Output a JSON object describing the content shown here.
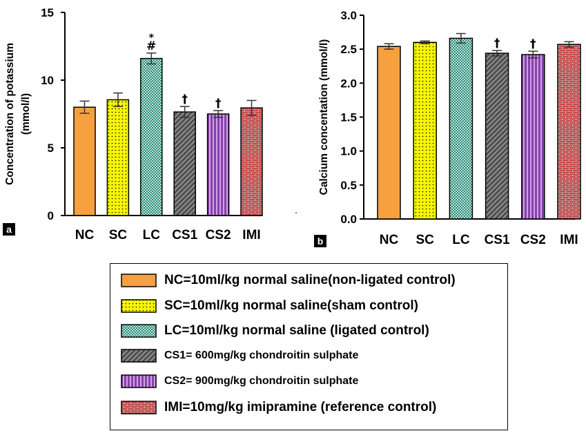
{
  "colors": {
    "NC": "#F7A040",
    "SC": "#F5F500",
    "LC": "#2E8B7A",
    "CS1": "#4A4A4A",
    "CS2": "#8B3FAE",
    "IMI": "#C94A4A"
  },
  "chart_data": [
    {
      "id": "a",
      "panel_label": "a",
      "type": "bar",
      "title": "",
      "xlabel": "",
      "ylabel": "Concentration of potassium\n(mmol/l)",
      "ylabel_lines": [
        "Concentration of potassium",
        "(mmol/l)"
      ],
      "ylim": [
        0,
        15
      ],
      "yticks": [
        0,
        5,
        10,
        15
      ],
      "tick_labels": [
        "0",
        "5",
        "10",
        "15"
      ],
      "categories": [
        "NC",
        "SC",
        "LC",
        "CS1",
        "CS2",
        "IMI"
      ],
      "values": [
        8.0,
        8.55,
        11.6,
        7.65,
        7.5,
        7.95
      ],
      "errors": [
        0.45,
        0.5,
        0.4,
        0.4,
        0.25,
        0.55
      ],
      "annotations": [
        "",
        "",
        "#\n*",
        "†",
        "†",
        ""
      ],
      "annotation_lines": [
        [],
        [],
        [
          "*",
          "#"
        ],
        [
          "†"
        ],
        [
          "†"
        ],
        []
      ]
    },
    {
      "id": "b",
      "panel_label": "b",
      "type": "bar",
      "title": "",
      "xlabel": "",
      "ylabel": "Calcium concentation (mmol/l)",
      "ylabel_lines": [
        "Calcium concentation (mmol/l)"
      ],
      "ylim": [
        0,
        3.0
      ],
      "yticks": [
        0,
        0.5,
        1.0,
        1.5,
        2.0,
        2.5,
        3.0
      ],
      "tick_labels": [
        "0.0",
        "0.5",
        "1.0",
        "1.5",
        "2.0",
        "2.5",
        "3.0"
      ],
      "categories": [
        "NC",
        "SC",
        "LC",
        "CS1",
        "CS2",
        "IMI"
      ],
      "values": [
        2.54,
        2.6,
        2.66,
        2.44,
        2.42,
        2.57
      ],
      "errors": [
        0.04,
        0.02,
        0.07,
        0.04,
        0.05,
        0.04
      ],
      "annotations": [
        "",
        "",
        "",
        "†",
        "†",
        ""
      ],
      "annotation_lines": [
        [],
        [],
        [],
        [
          "†"
        ],
        [
          "†"
        ],
        []
      ]
    }
  ],
  "legend": [
    {
      "key": "NC",
      "label": "NC=10ml/kg normal saline(non-ligated control)"
    },
    {
      "key": "SC",
      "label": "SC=10ml/kg normal saline(sham control)"
    },
    {
      "key": "LC",
      "label": "LC=10ml/kg normal saline (ligated control)"
    },
    {
      "key": "CS1",
      "label": "CS1= 600mg/kg chondroitin sulphate"
    },
    {
      "key": "CS2",
      "label": "CS2= 900mg/kg chondroitin sulphate"
    },
    {
      "key": "IMI",
      "label": "IMI=10mg/kg imipramine (reference control)"
    }
  ]
}
